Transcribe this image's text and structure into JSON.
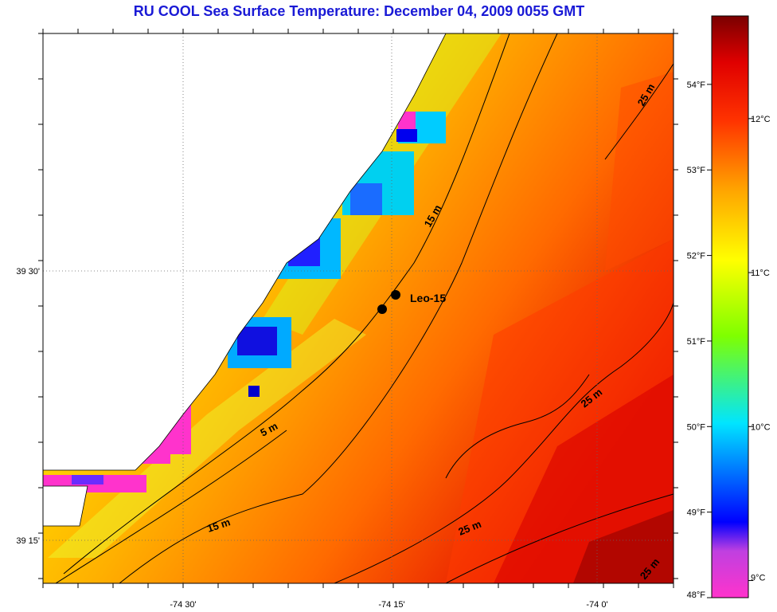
{
  "title": "RU COOL  Sea Surface Temperature:  December 04, 2009 0055 GMT",
  "axes": {
    "x_ticks": [
      "-74 30'",
      "-74 15'",
      "-74 0'"
    ],
    "y_ticks": [
      "39 30'",
      "39 15'"
    ]
  },
  "stations": [
    {
      "label": "Leo-15"
    }
  ],
  "contour_labels": [
    "5 m",
    "15 m",
    "15 m",
    "25 m",
    "25 m",
    "25 m",
    "25 m"
  ],
  "colorbar": {
    "fahrenheit": [
      "54°F",
      "53°F",
      "52°F",
      "51°F",
      "50°F",
      "49°F",
      "48°F"
    ],
    "celsius": [
      "12°C",
      "11°C",
      "10°C",
      "9°C"
    ],
    "fahrenheit_values": [
      54,
      53,
      52,
      51,
      50,
      49,
      48
    ],
    "celsius_values": [
      12,
      11,
      10,
      9
    ],
    "range_fahrenheit": [
      48,
      54.8
    ],
    "colors": [
      "#ff33cc",
      "#8a2be2",
      "#0000ff",
      "#00e5ff",
      "#7fff00",
      "#ffff00",
      "#ff8c00",
      "#ff0000",
      "#7a0000"
    ]
  },
  "colors": {
    "title": "#1a1ad6",
    "land": "#ffffff",
    "contour": "#000000"
  }
}
